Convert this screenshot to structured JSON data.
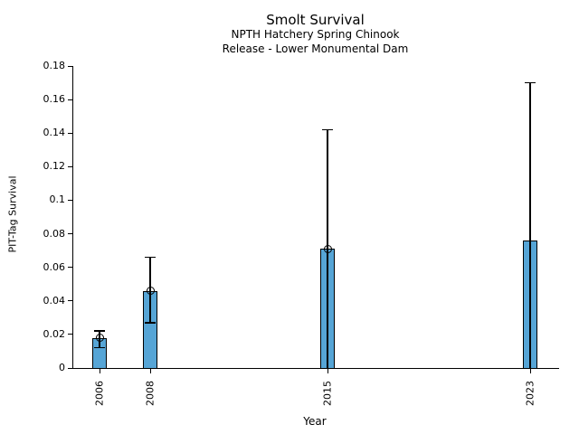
{
  "chart_data": {
    "type": "bar",
    "title": "Smolt Survival",
    "subtitle1": "NPTH Hatchery Spring Chinook",
    "subtitle2": "Release - Lower Monumental Dam",
    "xlabel": "Year",
    "ylabel": "PIT-Tag Survival",
    "ylim": [
      0,
      0.18
    ],
    "yticks": [
      0,
      0.02,
      0.04,
      0.06,
      0.08,
      0.1,
      0.12,
      0.14,
      0.16,
      0.18
    ],
    "ytick_labels": [
      "0",
      "0.02",
      "0.04",
      "0.06",
      "0.08",
      "0.1",
      "0.12",
      "0.14",
      "0.16",
      "0.18"
    ],
    "grid": false,
    "categories": [
      "2006",
      "2008",
      "2015",
      "2023"
    ],
    "x_years": [
      2006,
      2008,
      2015,
      2023
    ],
    "x_axis_scale": "linear-by-year",
    "bar_color": "#56A5D6",
    "bar_edge_color": "#000000",
    "error_color": "#000000",
    "series": [
      {
        "name": "PIT-Tag Survival",
        "values": [
          0.018,
          0.046,
          0.071,
          0.076
        ],
        "error_low": [
          0.012,
          0.027,
          0.0,
          0.0
        ],
        "error_high": [
          0.022,
          0.066,
          0.142,
          0.17
        ],
        "point_marker": [
          true,
          true,
          true,
          false
        ]
      }
    ]
  }
}
